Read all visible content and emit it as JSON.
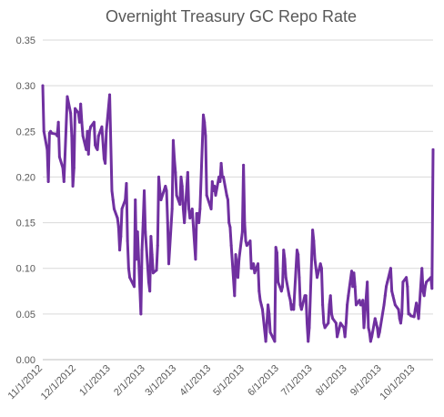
{
  "chart_data": {
    "type": "line",
    "title": "Overnight Treasury GC Repo Rate",
    "xlabel": "",
    "ylabel": "",
    "ylim": [
      0,
      0.35
    ],
    "yticks": [
      "0.00",
      "0.05",
      "0.10",
      "0.15",
      "0.20",
      "0.25",
      "0.30",
      "0.35"
    ],
    "xticks": [
      "11/1/2012",
      "12/1/2012",
      "1/1/2013",
      "2/1/2013",
      "3/1/2013",
      "4/1/2013",
      "5/1/2013",
      "6/1/2013",
      "7/1/2013",
      "8/1/2013",
      "9/1/2013",
      "10/1/2013"
    ],
    "grid": true,
    "legend": "none",
    "line_color": "#7030a0",
    "series": [
      {
        "x": [
          "11/1/2012",
          "11/2/2012",
          "11/5/2012",
          "11/6/2012",
          "11/7/2012",
          "11/8/2012",
          "11/9/2012",
          "11/13/2012",
          "11/14/2012",
          "11/15/2012",
          "11/16/2012",
          "11/19/2012",
          "11/20/2012",
          "11/21/2012",
          "11/23/2012",
          "11/26/2012",
          "11/27/2012",
          "11/28/2012",
          "11/29/2012",
          "11/30/2012",
          "12/3/2012",
          "12/4/2012",
          "12/5/2012",
          "12/6/2012",
          "12/7/2012",
          "12/10/2012",
          "12/11/2012",
          "12/12/2012",
          "12/13/2012",
          "12/14/2012",
          "12/17/2012",
          "12/18/2012",
          "12/19/2012",
          "12/20/2012",
          "12/21/2012",
          "12/24/2012",
          "12/26/2012",
          "12/27/2012",
          "12/28/2012",
          "12/31/2012",
          "1/2/2013",
          "1/3/2013",
          "1/4/2013",
          "1/7/2013",
          "1/8/2013",
          "1/9/2013",
          "1/10/2013",
          "1/11/2013",
          "1/14/2013",
          "1/15/2013",
          "1/16/2013",
          "1/17/2013",
          "1/18/2013",
          "1/22/2013",
          "1/23/2013",
          "1/24/2013",
          "1/25/2013",
          "1/28/2013",
          "1/29/2013",
          "1/30/2013",
          "1/31/2013",
          "2/1/2013",
          "2/4/2013",
          "2/5/2013",
          "2/6/2013",
          "2/7/2013",
          "2/8/2013",
          "2/11/2013",
          "2/12/2013",
          "2/13/2013",
          "2/14/2013",
          "2/15/2013",
          "2/19/2013",
          "2/20/2013",
          "2/21/2013",
          "2/22/2013",
          "2/25/2013",
          "2/26/2013",
          "2/27/2013",
          "2/28/2013",
          "3/1/2013",
          "3/4/2013",
          "3/5/2013",
          "3/6/2013",
          "3/7/2013",
          "3/8/2013",
          "3/11/2013",
          "3/12/2013",
          "3/13/2013",
          "3/14/2013",
          "3/15/2013",
          "3/18/2013",
          "3/19/2013",
          "3/20/2013",
          "3/21/2013",
          "3/22/2013",
          "3/25/2013",
          "3/26/2013",
          "3/27/2013",
          "3/28/2013",
          "4/1/2013",
          "4/2/2013",
          "4/3/2013",
          "4/4/2013",
          "4/5/2013",
          "4/8/2013",
          "4/9/2013",
          "4/10/2013",
          "4/11/2013",
          "4/12/2013",
          "4/15/2013",
          "4/16/2013",
          "4/17/2013",
          "4/18/2013",
          "4/19/2013",
          "4/22/2013",
          "4/23/2013",
          "4/24/2013",
          "4/25/2013",
          "4/26/2013",
          "4/29/2013",
          "4/30/2013",
          "5/1/2013",
          "5/2/2013",
          "5/3/2013",
          "5/6/2013",
          "5/7/2013",
          "5/8/2013",
          "5/9/2013",
          "5/10/2013",
          "5/13/2013",
          "5/14/2013",
          "5/15/2013",
          "5/16/2013",
          "5/17/2013",
          "5/20/2013",
          "5/21/2013",
          "5/22/2013",
          "5/23/2013",
          "5/24/2013",
          "5/28/2013",
          "5/29/2013",
          "5/30/2013",
          "5/31/2013",
          "6/3/2013",
          "6/4/2013",
          "6/5/2013",
          "6/6/2013",
          "6/7/2013",
          "6/10/2013",
          "6/11/2013",
          "6/12/2013",
          "6/13/2013",
          "6/14/2013",
          "6/17/2013",
          "6/18/2013",
          "6/19/2013",
          "6/20/2013",
          "6/21/2013",
          "6/24/2013",
          "6/25/2013",
          "6/26/2013",
          "6/27/2013",
          "6/28/2013",
          "7/1/2013",
          "7/2/2013",
          "7/3/2013",
          "7/5/2013",
          "7/8/2013",
          "7/9/2013",
          "7/10/2013",
          "7/11/2013",
          "7/12/2013",
          "7/15/2013",
          "7/16/2013",
          "7/17/2013",
          "7/18/2013",
          "7/19/2013",
          "7/22/2013",
          "7/23/2013",
          "7/24/2013",
          "7/25/2013",
          "7/26/2013",
          "7/29/2013",
          "7/30/2013",
          "7/31/2013",
          "8/1/2013",
          "8/2/2013",
          "8/5/2013",
          "8/6/2013",
          "8/7/2013",
          "8/8/2013",
          "8/9/2013",
          "8/12/2013",
          "8/13/2013",
          "8/14/2013",
          "8/15/2013",
          "8/16/2013",
          "8/19/2013",
          "8/20/2013",
          "8/21/2013",
          "8/22/2013",
          "8/23/2013",
          "8/26/2013",
          "8/27/2013",
          "8/28/2013",
          "8/29/2013",
          "8/30/2013",
          "9/3/2013",
          "9/4/2013",
          "9/5/2013",
          "9/6/2013",
          "9/9/2013",
          "9/10/2013",
          "9/11/2013",
          "9/12/2013",
          "9/13/2013",
          "9/16/2013",
          "9/17/2013",
          "9/18/2013",
          "9/19/2013",
          "9/20/2013",
          "9/23/2013",
          "9/24/2013",
          "9/25/2013",
          "9/26/2013",
          "9/27/2013",
          "9/30/2013",
          "10/1/2013",
          "10/2/2013",
          "10/3/2013",
          "10/4/2013",
          "10/7/2013",
          "10/8/2013",
          "10/9/2013",
          "10/10/2013",
          "10/11/2013",
          "10/15/2013",
          "10/16/2013",
          "10/17/2013"
        ],
        "values": [
          0.3,
          0.25,
          0.23,
          0.195,
          0.248,
          0.25,
          0.248,
          0.247,
          0.245,
          0.26,
          0.222,
          0.21,
          0.195,
          0.225,
          0.288,
          0.27,
          0.245,
          0.19,
          0.21,
          0.275,
          0.27,
          0.26,
          0.28,
          0.26,
          0.245,
          0.23,
          0.25,
          0.225,
          0.25,
          0.255,
          0.26,
          0.235,
          0.232,
          0.23,
          0.245,
          0.255,
          0.22,
          0.215,
          0.25,
          0.29,
          0.185,
          0.175,
          0.165,
          0.155,
          0.145,
          0.12,
          0.135,
          0.165,
          0.175,
          0.193,
          0.13,
          0.1,
          0.09,
          0.08,
          0.175,
          0.11,
          0.14,
          0.05,
          0.12,
          0.15,
          0.185,
          0.14,
          0.085,
          0.075,
          0.135,
          0.115,
          0.095,
          0.098,
          0.125,
          0.2,
          0.185,
          0.175,
          0.19,
          0.185,
          0.15,
          0.105,
          0.165,
          0.24,
          0.22,
          0.205,
          0.18,
          0.17,
          0.2,
          0.19,
          0.165,
          0.15,
          0.205,
          0.165,
          0.155,
          0.16,
          0.165,
          0.11,
          0.16,
          0.16,
          0.15,
          0.165,
          0.268,
          0.26,
          0.245,
          0.18,
          0.165,
          0.195,
          0.185,
          0.19,
          0.18,
          0.2,
          0.195,
          0.215,
          0.2,
          0.2,
          0.18,
          0.175,
          0.15,
          0.145,
          0.125,
          0.07,
          0.115,
          0.1,
          0.09,
          0.11,
          0.14,
          0.213,
          0.15,
          0.13,
          0.125,
          0.13,
          0.1,
          0.1,
          0.105,
          0.095,
          0.105,
          0.075,
          0.065,
          0.06,
          0.055,
          0.02,
          0.04,
          0.06,
          0.05,
          0.03,
          0.02,
          0.123,
          0.117,
          0.085,
          0.075,
          0.08,
          0.12,
          0.11,
          0.09,
          0.07,
          0.065,
          0.055,
          0.06,
          0.055,
          0.12,
          0.115,
          0.09,
          0.06,
          0.055,
          0.07,
          0.07,
          0.04,
          0.02,
          0.035,
          0.142,
          0.13,
          0.11,
          0.09,
          0.105,
          0.1,
          0.06,
          0.04,
          0.035,
          0.04,
          0.06,
          0.07,
          0.05,
          0.045,
          0.04,
          0.025,
          0.03,
          0.035,
          0.04,
          0.035,
          0.025,
          0.04,
          0.06,
          0.07,
          0.097,
          0.08,
          0.095,
          0.08,
          0.06,
          0.065,
          0.06,
          0.06,
          0.065,
          0.035,
          0.085,
          0.035,
          0.03,
          0.02,
          0.025,
          0.045,
          0.04,
          0.035,
          0.025,
          0.03,
          0.06,
          0.07,
          0.08,
          0.085,
          0.1,
          0.075,
          0.07,
          0.065,
          0.06,
          0.055,
          0.045,
          0.04,
          0.05,
          0.085,
          0.09,
          0.08,
          0.05,
          0.05,
          0.048,
          0.047,
          0.055,
          0.062,
          0.055,
          0.045,
          0.1,
          0.075,
          0.07,
          0.08,
          0.085,
          0.09,
          0.078,
          0.23
        ]
      }
    ]
  }
}
